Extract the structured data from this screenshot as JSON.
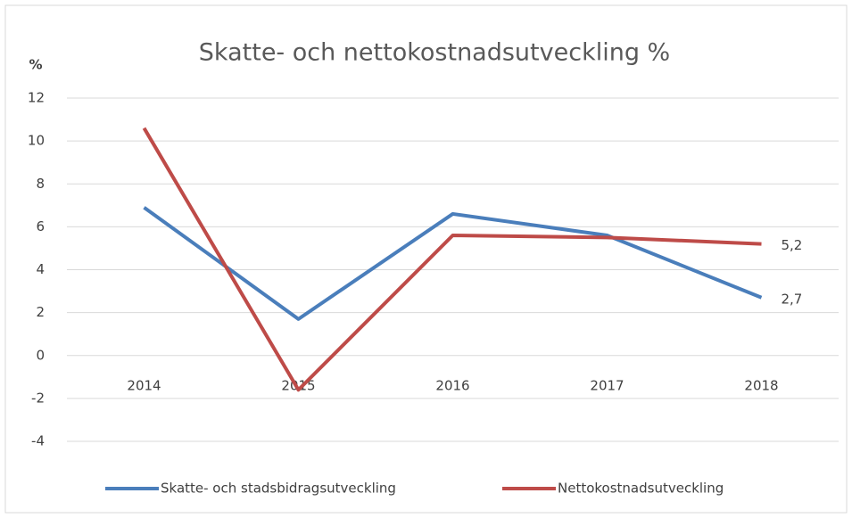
{
  "chart_data": {
    "type": "line",
    "title": "Skatte- och nettokostnadsutveckling %",
    "y_label": "%",
    "categories": [
      "2014",
      "2015",
      "2016",
      "2017",
      "2018"
    ],
    "series": [
      {
        "name": "Skatte- och stadsbidragsutveckling",
        "color": "#4a7ebb",
        "values": [
          6.9,
          1.7,
          6.6,
          5.6,
          2.7
        ],
        "value_labels": [
          null,
          null,
          null,
          null,
          "2,7"
        ]
      },
      {
        "name": "Nettokostnadsutveckling",
        "color": "#be4b48",
        "values": [
          10.6,
          -1.6,
          5.6,
          5.5,
          5.2
        ],
        "value_labels": [
          null,
          null,
          null,
          null,
          "5,2"
        ]
      }
    ],
    "ylim": [
      -4,
      12
    ],
    "yticks": [
      -4,
      -2,
      0,
      2,
      4,
      6,
      8,
      10,
      12
    ],
    "grid": true,
    "legend": "bottom"
  }
}
